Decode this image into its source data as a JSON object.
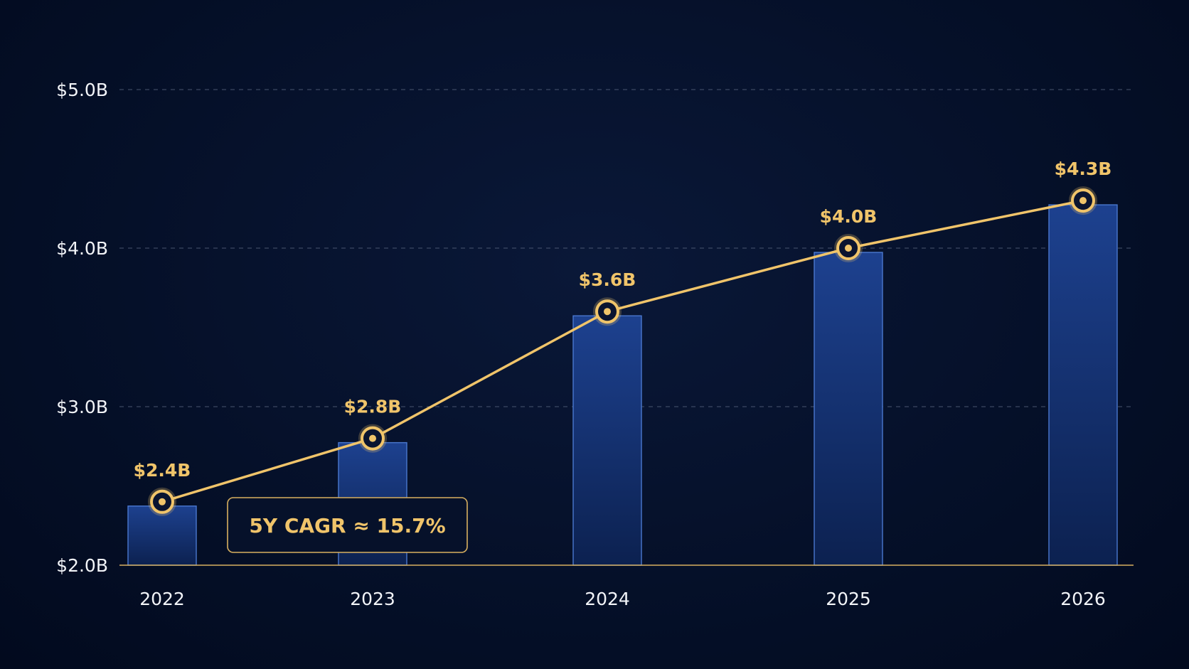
{
  "chart_data": {
    "type": "bar",
    "categories": [
      "2022",
      "2023",
      "2024",
      "2025",
      "2026"
    ],
    "values": [
      2.4,
      2.8,
      3.6,
      4.0,
      4.3
    ],
    "value_labels": [
      "$2.4B",
      "$2.8B",
      "$3.6B",
      "$4.0B",
      "$4.3B"
    ],
    "line_overlay": true,
    "ylim": [
      2.0,
      5.0
    ],
    "yticks": [
      2.0,
      3.0,
      4.0,
      5.0
    ],
    "ytick_labels": [
      "$2.0B",
      "$3.0B",
      "$4.0B",
      "$5.0B"
    ],
    "grid": true,
    "annotation": "5Y CAGR ≈ 15.7%",
    "title": "",
    "xlabel": "",
    "ylabel": ""
  },
  "colors": {
    "bar_fill_top": "#1c3f8a",
    "bar_fill_bottom": "#0e2456",
    "bar_stroke": "#4a78cf",
    "line": "#f0c46a",
    "grid": "#5a6680",
    "axis": "#d8b060",
    "text": "#f2f4f8",
    "background": "#030d26"
  }
}
